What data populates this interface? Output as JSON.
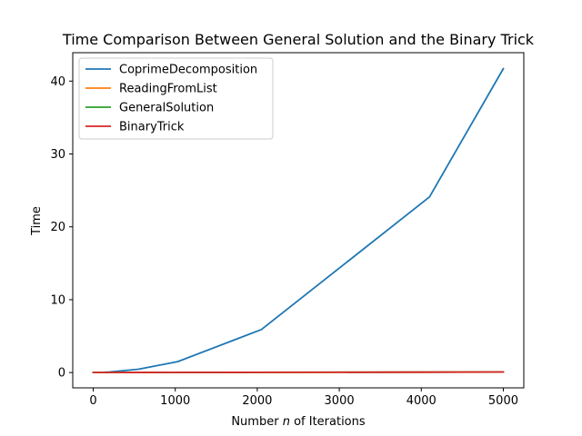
{
  "chart_data": {
    "type": "line",
    "title": "Time Comparison Between General Solution and the Binary Trick",
    "xlabel_prefix": "Number ",
    "xlabel_var": "n",
    "xlabel_suffix": " of Iterations",
    "ylabel": "Time",
    "xlim": [
      -250,
      5250
    ],
    "ylim": [
      -2.1,
      43.9
    ],
    "xticks": [
      0,
      1000,
      2000,
      3000,
      4000,
      5000
    ],
    "yticks": [
      0,
      10,
      20,
      30,
      40
    ],
    "grid": false,
    "legend_position": "upper-left",
    "series": [
      {
        "name": "CoprimeDecomposition",
        "color": "#1f77b4",
        "x": [
          1,
          10,
          100,
          200,
          550,
          1030,
          2050,
          4100,
          5000
        ],
        "y": [
          0.0,
          0.0,
          0.02,
          0.08,
          0.45,
          1.5,
          5.9,
          24.1,
          41.7
        ]
      },
      {
        "name": "ReadingFromList",
        "color": "#ff7f0e",
        "x": [
          1,
          10,
          100,
          200,
          550,
          1030,
          2050,
          4100,
          5000
        ],
        "y": [
          0.0,
          0.0,
          0.0,
          0.0,
          0.0,
          0.01,
          0.02,
          0.05,
          0.07
        ]
      },
      {
        "name": "GeneralSolution",
        "color": "#2ca02c",
        "x": [
          1,
          10,
          100,
          200,
          550,
          1030,
          2050,
          4100,
          5000
        ],
        "y": [
          0.0,
          0.0,
          0.0,
          0.0,
          0.01,
          0.02,
          0.03,
          0.06,
          0.08
        ]
      },
      {
        "name": "BinaryTrick",
        "color": "#d62728",
        "x": [
          1,
          10,
          100,
          200,
          550,
          1030,
          2050,
          4100,
          5000
        ],
        "y": [
          0.0,
          0.0,
          0.0,
          0.0,
          0.01,
          0.02,
          0.03,
          0.06,
          0.08
        ]
      }
    ]
  }
}
